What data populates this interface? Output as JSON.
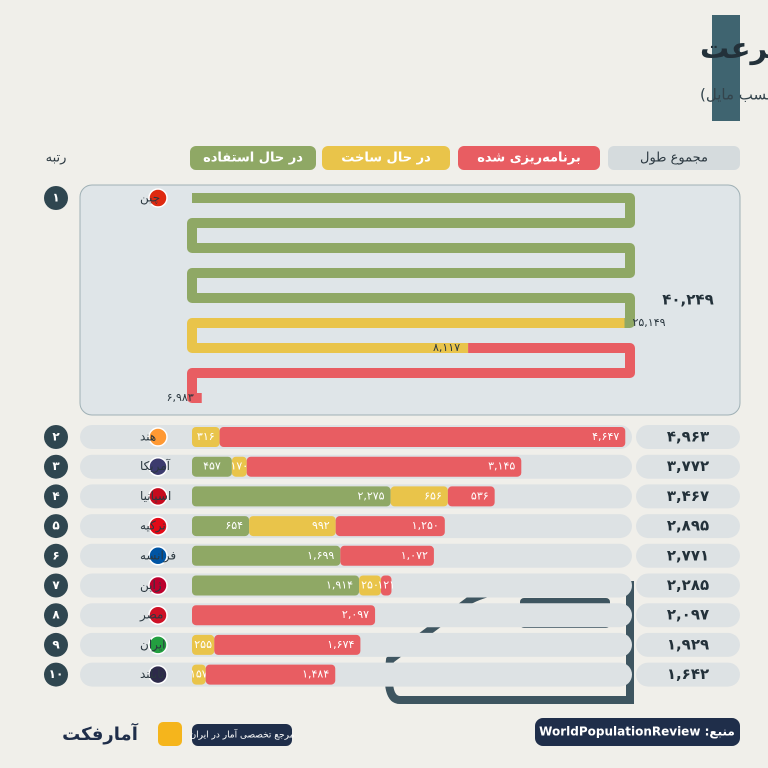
{
  "chart_data": {
    "type": "bar",
    "title": "کشورهایی با بیشترین قطارهای پرسرعت",
    "subtitle": "طولانی‌ترین خطوط راه‌آهن پرسرعت در جهان (بر حسب مایل)",
    "rank_header": "رتبه",
    "total_header": "مجموع طول",
    "ranks": [
      "۱",
      "۲",
      "۳",
      "۴",
      "۵",
      "۶",
      "۷",
      "۸",
      "۹",
      "۱۰"
    ],
    "categories": [
      "چین",
      "هند",
      "آمریکا",
      "اسپانیا",
      "ترکیه",
      "فرانسه",
      "ژاپن",
      "مصر",
      "ایران",
      "تایلند"
    ],
    "series": [
      {
        "name": "در حال استفاده",
        "color": "#8fa865",
        "values": [
          25149,
          null,
          457,
          2275,
          654,
          1699,
          1914,
          null,
          null,
          null
        ],
        "value_labels": [
          "۲۵,۱۴۹",
          null,
          "۴۵۷",
          "۲,۲۷۵",
          "۶۵۴",
          "۱,۶۹۹",
          "۱,۹۱۴",
          null,
          null,
          null
        ]
      },
      {
        "name": "در حال ساخت",
        "color": "#e9c44a",
        "values": [
          8117,
          316,
          170,
          656,
          992,
          null,
          250,
          null,
          255,
          157
        ],
        "value_labels": [
          "۸,۱۱۷",
          "۳۱۶",
          "۱۷۰",
          "۶۵۶",
          "۹۹۲",
          null,
          "۲۵۰",
          null,
          "۲۵۵",
          "۱۵۷"
        ]
      },
      {
        "name": "برنامه‌ریزی شده",
        "color": "#e85d62",
        "values": [
          6983,
          4647,
          3145,
          536,
          1250,
          1072,
          121,
          2097,
          1674,
          1484
        ],
        "value_labels": [
          "۶,۹۸۳",
          "۴,۶۴۷",
          "۳,۱۴۵",
          "۵۳۶",
          "۱,۲۵۰",
          "۱,۰۷۲",
          "۱۲۱",
          "۲,۰۹۷",
          "۱,۶۷۴",
          "۱,۴۸۴"
        ]
      }
    ],
    "totals": [
      40249,
      4963,
      3772,
      3467,
      2895,
      2771,
      2285,
      2097,
      1929,
      1642
    ],
    "total_labels": [
      "۴۰,۲۴۹",
      "۴,۹۶۳",
      "۳,۷۷۲",
      "۳,۴۶۷",
      "۲,۸۹۵",
      "۲,۷۷۱",
      "۲,۲۸۵",
      "۲,۰۹۷",
      "۱,۹۲۹",
      "۱,۶۴۲"
    ]
  },
  "footer": {
    "source": "منبع: WorldPopulationReview",
    "tagline": "مرجع تخصصی آمار در ایران",
    "brand": "آمارفکت"
  }
}
